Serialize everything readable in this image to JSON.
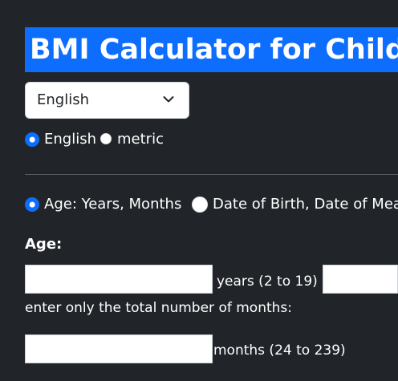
{
  "header": {
    "title": "BMI Calculator for Child"
  },
  "units": {
    "select_value": "English",
    "radio_options": [
      {
        "label": "English",
        "checked": true
      },
      {
        "label": "metric",
        "checked": false
      }
    ]
  },
  "age_mode": {
    "options": [
      {
        "label": "Age: Years, Months",
        "checked": true
      },
      {
        "label": "Date of Birth, Date of Mea",
        "checked": false
      }
    ]
  },
  "age": {
    "label": "Age:",
    "years_value": "",
    "years_hint": "years (2 to 19)",
    "months_value": "",
    "months_instruction": "enter only the total number of months:",
    "total_months_value": "",
    "total_months_hint": "months (24 to 239)"
  },
  "colors": {
    "background": "#212529",
    "accent": "#0d6efd",
    "text": "#ffffff"
  },
  "icons": {
    "select_chevron": "chevron-down-icon"
  }
}
